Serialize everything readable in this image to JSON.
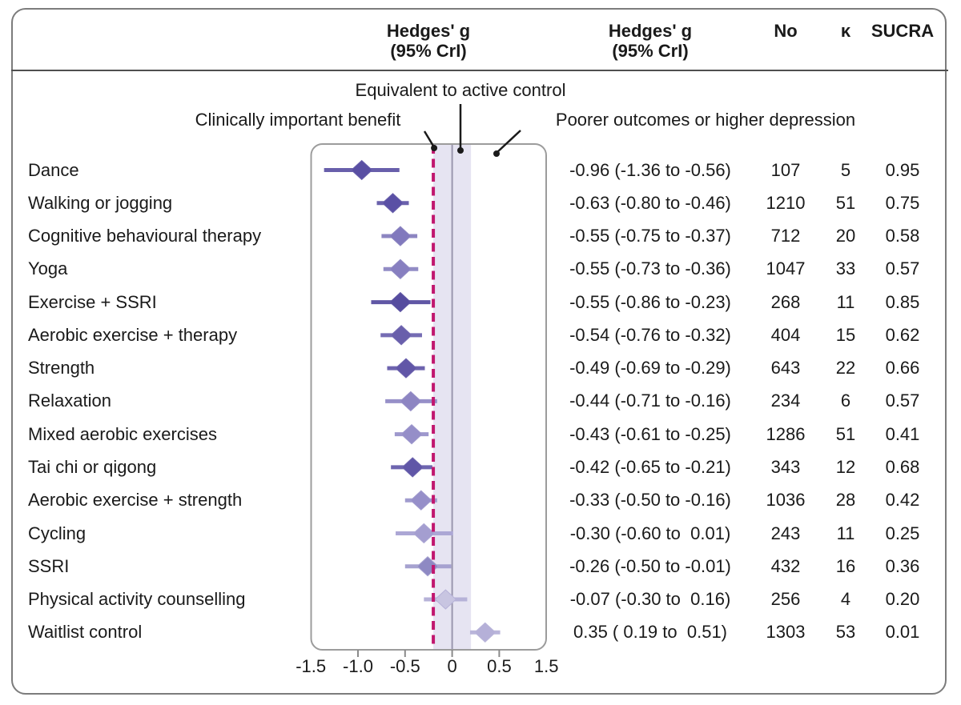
{
  "figure": {
    "kind": "forest plot",
    "colors": {
      "text": "#1a1a1a",
      "frame_border": "#7c7c7c",
      "header_divider": "#4f4f4f",
      "plot_box_border": "#9c9c9c",
      "reference_band_fill": "#e6e4f2",
      "zero_line": "#9a96ae",
      "benefit_threshold_line": "#c1176f",
      "leader_line": "#1a1a1a",
      "axis_tick": "#8a8a8a"
    }
  },
  "header": {
    "effect_plot_title": "Hedges' g",
    "effect_plot_sub": "(95% CrI)",
    "effect_text_title": "Hedges' g",
    "effect_text_sub": "(95% CrI)",
    "col_n": "No",
    "col_k": "κ",
    "col_sucra": "SUCRA"
  },
  "annotations": {
    "benefit": "Clinically important benefit",
    "equivalent": "Equivalent to active control",
    "poorer": "Poorer outcomes or higher depression"
  },
  "chart_data": {
    "type": "forest",
    "effect_measure": "Hedges' g (95% CrI)",
    "benefit_threshold": -0.2,
    "zero_line": 0,
    "reference_band": {
      "from": -0.2,
      "to": 0.2
    },
    "axis": {
      "note": "right-most tick is labelled 1.5 but sits one 0.5-step after 0.5 (compressed axis)",
      "ticks": [
        {
          "label": "-1.5",
          "pos": -1.5
        },
        {
          "label": "-1.0",
          "pos": -1.0
        },
        {
          "label": "-0.5",
          "pos": -0.5
        },
        {
          "label": "0",
          "pos": 0.0
        },
        {
          "label": "0.5",
          "pos": 0.5
        },
        {
          "label": "1.5",
          "pos": 1.0
        }
      ]
    },
    "rows": [
      {
        "label": "Dance",
        "estimate": -0.96,
        "ci_low": -1.36,
        "ci_high": -0.56,
        "display": "-0.96 (-1.36 to -0.56)",
        "n": 107,
        "k": 5,
        "sucra": "0.95",
        "diamond_color": "#594fa3",
        "line_color": "#685fab"
      },
      {
        "label": "Walking or jogging",
        "estimate": -0.63,
        "ci_low": -0.8,
        "ci_high": -0.46,
        "display": "-0.63 (-0.80 to -0.46)",
        "n": 1210,
        "k": 51,
        "sucra": "0.75",
        "diamond_color": "#5a50a5",
        "line_color": "#6a61ac"
      },
      {
        "label": "Cognitive behavioural therapy",
        "estimate": -0.55,
        "ci_low": -0.75,
        "ci_high": -0.37,
        "display": "-0.55 (-0.75 to -0.37)",
        "n": 712,
        "k": 20,
        "sucra": "0.58",
        "diamond_color": "#8179bd",
        "line_color": "#8c85c1"
      },
      {
        "label": "Yoga",
        "estimate": -0.55,
        "ci_low": -0.73,
        "ci_high": -0.36,
        "display": "-0.55 (-0.73 to -0.36)",
        "n": 1047,
        "k": 33,
        "sucra": "0.57",
        "diamond_color": "#877fc0",
        "line_color": "#928cc5"
      },
      {
        "label": "Exercise + SSRI",
        "estimate": -0.55,
        "ci_low": -0.86,
        "ci_high": -0.23,
        "display": "-0.55 (-0.86 to -0.23)",
        "n": 268,
        "k": 11,
        "sucra": "0.85",
        "diamond_color": "#564c9f",
        "line_color": "#6057a5"
      },
      {
        "label": "Aerobic exercise + therapy",
        "estimate": -0.54,
        "ci_low": -0.76,
        "ci_high": -0.32,
        "display": "-0.54 (-0.76 to -0.32)",
        "n": 404,
        "k": 15,
        "sucra": "0.62",
        "diamond_color": "#695fab",
        "line_color": "#756cb3"
      },
      {
        "label": "Strength",
        "estimate": -0.49,
        "ci_low": -0.69,
        "ci_high": -0.29,
        "display": "-0.49 (-0.69 to -0.29)",
        "n": 643,
        "k": 22,
        "sucra": "0.66",
        "diamond_color": "#6156a7",
        "line_color": "#6d63ae"
      },
      {
        "label": "Relaxation",
        "estimate": -0.44,
        "ci_low": -0.71,
        "ci_high": -0.16,
        "display": "-0.44 (-0.71 to -0.16)",
        "n": 234,
        "k": 6,
        "sucra": "0.57",
        "diamond_color": "#8d85c2",
        "line_color": "#9790c8"
      },
      {
        "label": "Mixed aerobic exercises",
        "estimate": -0.43,
        "ci_low": -0.61,
        "ci_high": -0.25,
        "display": "-0.43 (-0.61 to -0.25)",
        "n": 1286,
        "k": 51,
        "sucra": "0.41",
        "diamond_color": "#958ec8",
        "line_color": "#9e98cd"
      },
      {
        "label": "Tai chi or qigong",
        "estimate": -0.42,
        "ci_low": -0.65,
        "ci_high": -0.21,
        "display": "-0.42 (-0.65 to -0.21)",
        "n": 343,
        "k": 12,
        "sucra": "0.68",
        "diamond_color": "#6056a7",
        "line_color": "#6e65af"
      },
      {
        "label": "Aerobic exercise + strength",
        "estimate": -0.33,
        "ci_low": -0.5,
        "ci_high": -0.16,
        "display": "-0.33 (-0.50 to -0.16)",
        "n": 1036,
        "k": 28,
        "sucra": "0.42",
        "diamond_color": "#968fc9",
        "line_color": "#a09bce"
      },
      {
        "label": "Cycling",
        "estimate": -0.3,
        "ci_low": -0.6,
        "ci_high": 0.01,
        "display": "-0.30 (-0.60 to  0.01)",
        "n": 243,
        "k": 11,
        "sucra": "0.25",
        "diamond_color": "#a49ed0",
        "line_color": "#aca7d5"
      },
      {
        "label": "SSRI",
        "estimate": -0.26,
        "ci_low": -0.5,
        "ci_high": -0.01,
        "display": "-0.26 (-0.50 to -0.01)",
        "n": 432,
        "k": 16,
        "sucra": "0.36",
        "diamond_color": "#8e89c3",
        "line_color": "#a6a2d0"
      },
      {
        "label": "Physical activity counselling",
        "estimate": -0.07,
        "ci_low": -0.3,
        "ci_high": 0.16,
        "display": "-0.07 (-0.30 to  0.16)",
        "n": 256,
        "k": 4,
        "sucra": "0.20",
        "diamond_color": "#c8c5e1",
        "line_color": "#b6b2d8"
      },
      {
        "label": "Waitlist control",
        "estimate": 0.35,
        "ci_low": 0.19,
        "ci_high": 0.51,
        "display": "0.35 ( 0.19 to  0.51)",
        "n": 1303,
        "k": 53,
        "sucra": "0.01",
        "diamond_color": "#b5b0d8",
        "line_color": "#b9b5da"
      }
    ]
  }
}
